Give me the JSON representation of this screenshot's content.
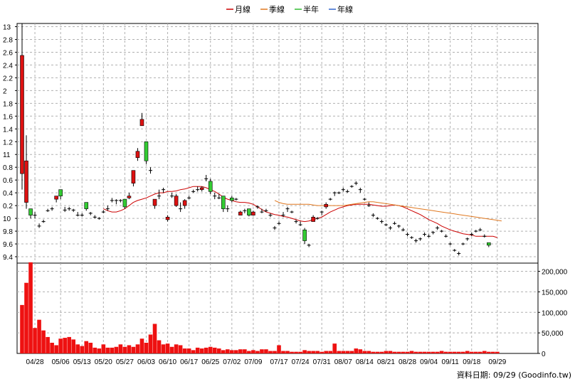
{
  "legend": [
    {
      "label": "月線",
      "color": "#cc0000"
    },
    {
      "label": "季線",
      "color": "#e07820"
    },
    {
      "label": "半年",
      "color": "#33bb33"
    },
    {
      "label": "年線",
      "color": "#3366cc"
    }
  ],
  "credit": "資料日期: 09/29 (Goodinfo.tw)",
  "colors": {
    "up": "#dd1111",
    "down": "#33cc33",
    "grid": "#b0b0b0",
    "volume": "#ee1111"
  },
  "chart_data": [
    {
      "type": "candlestick",
      "price_ticks": [
        "13",
        "2.8",
        "2.6",
        "2.4",
        "2.2",
        "2",
        "1.8",
        "1.6",
        "1.4",
        "1.2",
        "11",
        "0.8",
        "0.6",
        "0.4",
        "0.2",
        "10",
        "9.8",
        "9.6",
        "9.4"
      ],
      "price_tick_values": [
        13,
        12.8,
        12.6,
        12.4,
        12.2,
        12,
        11.8,
        11.6,
        11.4,
        11.2,
        11,
        10.8,
        10.6,
        10.4,
        10.2,
        10,
        9.8,
        9.6,
        9.4
      ],
      "ylim": [
        9.3,
        13.05
      ],
      "xlim": [
        0,
        120
      ],
      "x_ticks": [
        {
          "label": "04/28",
          "i": 3
        },
        {
          "label": "05/06",
          "i": 9
        },
        {
          "label": "05/13",
          "i": 14
        },
        {
          "label": "05/20",
          "i": 19
        },
        {
          "label": "05/27",
          "i": 24
        },
        {
          "label": "06/03",
          "i": 29
        },
        {
          "label": "06/10",
          "i": 34
        },
        {
          "label": "06/17",
          "i": 39
        },
        {
          "label": "06/25",
          "i": 44
        },
        {
          "label": "07/02",
          "i": 49
        },
        {
          "label": "07/09",
          "i": 54
        },
        {
          "label": "07/17",
          "i": 60
        },
        {
          "label": "07/24",
          "i": 65
        },
        {
          "label": "07/31",
          "i": 70
        },
        {
          "label": "08/07",
          "i": 75
        },
        {
          "label": "08/14",
          "i": 80
        },
        {
          "label": "08/21",
          "i": 85
        },
        {
          "label": "08/28",
          "i": 90
        },
        {
          "label": "09/04",
          "i": 95
        },
        {
          "label": "09/11",
          "i": 100
        },
        {
          "label": "09/18",
          "i": 105
        },
        {
          "label": "09/29",
          "i": 111
        }
      ],
      "candles": [
        [
          10.7,
          12.55,
          13.05,
          10.45
        ],
        [
          10.25,
          10.9,
          11.3,
          10.15
        ],
        [
          10.15,
          10.05,
          10.15,
          10.0
        ],
        [
          10.05,
          10.05,
          10.1,
          10.0
        ],
        [
          9.88,
          9.88,
          9.92,
          9.85
        ],
        [
          9.95,
          9.95,
          9.98,
          9.93
        ],
        [
          10.12,
          10.12,
          10.15,
          10.1
        ],
        [
          10.15,
          10.15,
          10.18,
          10.12
        ],
        [
          10.3,
          10.35,
          10.35,
          10.25
        ],
        [
          10.45,
          10.35,
          10.45,
          10.3
        ],
        [
          10.13,
          10.13,
          10.18,
          10.1
        ],
        [
          10.15,
          10.15,
          10.18,
          10.12
        ],
        [
          10.13,
          10.13,
          10.15,
          10.1
        ],
        [
          10.05,
          10.05,
          10.1,
          10.03
        ],
        [
          10.05,
          10.05,
          10.08,
          10.03
        ],
        [
          10.25,
          10.15,
          10.25,
          10.12
        ],
        [
          10.08,
          10.08,
          10.1,
          10.05
        ],
        [
          10.02,
          10.02,
          10.05,
          10.0
        ],
        [
          10.0,
          10.0,
          10.02,
          9.98
        ],
        [
          10.1,
          10.1,
          10.13,
          10.08
        ],
        [
          10.15,
          10.15,
          10.2,
          10.12
        ],
        [
          10.28,
          10.28,
          10.32,
          10.25
        ],
        [
          10.28,
          10.28,
          10.3,
          10.22
        ],
        [
          10.28,
          10.28,
          10.3,
          10.25
        ],
        [
          10.3,
          10.18,
          10.3,
          10.15
        ],
        [
          10.32,
          10.35,
          10.4,
          10.3
        ],
        [
          10.55,
          10.75,
          10.75,
          10.5
        ],
        [
          10.95,
          11.05,
          11.1,
          10.9
        ],
        [
          11.45,
          11.55,
          11.65,
          11.45
        ],
        [
          11.2,
          10.9,
          11.2,
          10.85
        ],
        [
          10.75,
          10.75,
          10.8,
          10.7
        ],
        [
          10.2,
          10.3,
          10.3,
          10.15
        ],
        [
          10.35,
          10.35,
          10.45,
          10.3
        ],
        [
          10.45,
          10.45,
          10.48,
          10.4
        ],
        [
          9.98,
          10.02,
          10.05,
          9.95
        ],
        [
          10.35,
          10.35,
          10.4,
          10.32
        ],
        [
          10.2,
          10.35,
          10.38,
          10.18
        ],
        [
          10.15,
          10.15,
          10.25,
          10.1
        ],
        [
          10.2,
          10.28,
          10.3,
          10.15
        ],
        [
          10.32,
          10.32,
          10.35,
          10.3
        ],
        [
          10.42,
          10.42,
          10.45,
          10.4
        ],
        [
          10.45,
          10.45,
          10.5,
          10.42
        ],
        [
          10.45,
          10.48,
          10.5,
          10.42
        ],
        [
          10.62,
          10.62,
          10.68,
          10.58
        ],
        [
          10.58,
          10.42,
          10.62,
          10.38
        ],
        [
          10.35,
          10.35,
          10.4,
          10.3
        ],
        [
          10.32,
          10.32,
          10.38,
          10.3
        ],
        [
          10.35,
          10.15,
          10.35,
          10.1
        ],
        [
          10.15,
          10.15,
          10.2,
          10.1
        ],
        [
          10.32,
          10.28,
          10.35,
          10.25
        ],
        [
          10.3,
          10.3,
          10.32,
          10.28
        ],
        [
          10.05,
          10.1,
          10.12,
          10.05
        ],
        [
          10.12,
          10.12,
          10.15,
          10.08
        ],
        [
          10.15,
          10.05,
          10.15,
          10.03
        ],
        [
          10.05,
          10.1,
          10.12,
          10.05
        ],
        [
          10.18,
          10.18,
          10.2,
          10.15
        ],
        [
          10.1,
          10.1,
          10.15,
          10.08
        ],
        [
          10.12,
          10.12,
          10.15,
          10.1
        ],
        [
          10.05,
          10.05,
          10.08,
          10.02
        ],
        [
          9.85,
          9.85,
          9.88,
          9.82
        ],
        [
          9.92,
          9.92,
          9.95,
          9.9
        ],
        [
          10.05,
          10.05,
          10.1,
          10.02
        ],
        [
          10.15,
          10.15,
          10.18,
          10.1
        ],
        [
          10.1,
          10.1,
          10.12,
          10.08
        ],
        [
          9.95,
          9.95,
          9.98,
          9.92
        ],
        [
          9.9,
          9.9,
          9.95,
          9.88
        ],
        [
          9.82,
          9.65,
          9.85,
          9.6
        ],
        [
          9.58,
          9.58,
          9.6,
          9.55
        ],
        [
          9.95,
          10.02,
          10.05,
          9.95
        ],
        [
          10.0,
          10.0,
          10.02,
          9.98
        ],
        [
          10.1,
          10.1,
          10.12,
          10.05
        ],
        [
          10.18,
          10.22,
          10.25,
          10.15
        ],
        [
          10.3,
          10.3,
          10.32,
          10.28
        ],
        [
          10.4,
          10.4,
          10.42,
          10.35
        ],
        [
          10.4,
          10.4,
          10.42,
          10.38
        ],
        [
          10.45,
          10.45,
          10.48,
          10.42
        ],
        [
          10.42,
          10.42,
          10.45,
          10.4
        ],
        [
          10.5,
          10.5,
          10.52,
          10.48
        ],
        [
          10.55,
          10.55,
          10.58,
          10.52
        ],
        [
          10.45,
          10.45,
          10.48,
          10.4
        ],
        [
          10.3,
          10.3,
          10.32,
          10.28
        ],
        [
          10.2,
          10.2,
          10.25,
          10.18
        ],
        [
          10.05,
          10.05,
          10.08,
          10.02
        ],
        [
          10.0,
          10.0,
          10.02,
          9.98
        ],
        [
          9.95,
          9.95,
          9.98,
          9.92
        ],
        [
          9.9,
          9.9,
          9.92,
          9.88
        ],
        [
          9.85,
          9.85,
          9.88,
          9.82
        ],
        [
          9.92,
          9.92,
          9.95,
          9.9
        ],
        [
          9.88,
          9.88,
          9.9,
          9.85
        ],
        [
          9.82,
          9.82,
          9.85,
          9.8
        ],
        [
          9.75,
          9.75,
          9.78,
          9.72
        ],
        [
          9.7,
          9.7,
          9.72,
          9.68
        ],
        [
          9.65,
          9.65,
          9.68,
          9.62
        ],
        [
          9.68,
          9.68,
          9.7,
          9.65
        ],
        [
          9.75,
          9.75,
          9.78,
          9.72
        ],
        [
          9.72,
          9.72,
          9.75,
          9.7
        ],
        [
          9.78,
          9.78,
          9.8,
          9.75
        ],
        [
          9.85,
          9.85,
          9.88,
          9.82
        ],
        [
          9.8,
          9.8,
          9.82,
          9.78
        ],
        [
          9.72,
          9.72,
          9.75,
          9.7
        ],
        [
          9.6,
          9.6,
          9.62,
          9.58
        ],
        [
          9.5,
          9.5,
          9.52,
          9.48
        ],
        [
          9.45,
          9.45,
          9.48,
          9.42
        ],
        [
          9.6,
          9.6,
          9.62,
          9.58
        ],
        [
          9.68,
          9.68,
          9.7,
          9.65
        ],
        [
          9.75,
          9.75,
          9.78,
          9.72
        ],
        [
          9.8,
          9.8,
          9.82,
          9.78
        ],
        [
          9.82,
          9.82,
          9.85,
          9.8
        ],
        [
          9.72,
          9.72,
          9.75,
          9.7
        ],
        [
          9.62,
          9.58,
          9.62,
          9.55
        ]
      ],
      "series": [
        {
          "name": "月線",
          "start": 19,
          "values": [
            10.15,
            10.12,
            10.1,
            10.1,
            10.12,
            10.15,
            10.2,
            10.25,
            10.28,
            10.3,
            10.32,
            10.35,
            10.38,
            10.4,
            10.4,
            10.42,
            10.42,
            10.43,
            10.45,
            10.46,
            10.48,
            10.5,
            10.5,
            10.5,
            10.48,
            10.45,
            10.42,
            10.38,
            10.33,
            10.3,
            10.28,
            10.26,
            10.25,
            10.25,
            10.24,
            10.22,
            10.18,
            10.14,
            10.1,
            10.08,
            10.06,
            10.05,
            10.03,
            10.02,
            10.0,
            9.98,
            9.96,
            9.95,
            9.96,
            9.98,
            10.0,
            10.02,
            10.06,
            10.1,
            10.13,
            10.16,
            10.18,
            10.2,
            10.21,
            10.22,
            10.22,
            10.22,
            10.22,
            10.21,
            10.2,
            10.19,
            10.19,
            10.2,
            10.21,
            10.2,
            10.18,
            10.15,
            10.12,
            10.09,
            10.06,
            10.02,
            9.98,
            9.95,
            9.92,
            9.88,
            9.85,
            9.82,
            9.8,
            9.78,
            9.76,
            9.75,
            9.74,
            9.72,
            9.72,
            9.72,
            9.72,
            9.72,
            9.7
          ]
        },
        {
          "name": "季線",
          "start": 59,
          "values": [
            10.28,
            10.25,
            10.23,
            10.22,
            10.22,
            10.22,
            10.22,
            10.22,
            10.22,
            10.21,
            10.2,
            10.2,
            10.2,
            10.2,
            10.2,
            10.2,
            10.2,
            10.21,
            10.22,
            10.23,
            10.24,
            10.25,
            10.26,
            10.26,
            10.25,
            10.24,
            10.23,
            10.22,
            10.21,
            10.2,
            10.19,
            10.18,
            10.17,
            10.16,
            10.15,
            10.14,
            10.13,
            10.12,
            10.11,
            10.1,
            10.09,
            10.08,
            10.07,
            10.06,
            10.05,
            10.04,
            10.03,
            10.02,
            10.01,
            10.0,
            9.99,
            9.98,
            9.97,
            9.96
          ]
        },
        {
          "name": "半年",
          "values": []
        },
        {
          "name": "年線",
          "values": []
        }
      ]
    },
    {
      "type": "bar",
      "y_ticks": [
        "200,000",
        "150,000",
        "100,000",
        "50,000",
        "0"
      ],
      "y_tick_values": [
        200000,
        150000,
        100000,
        50000,
        0
      ],
      "ylim": [
        0,
        220000
      ],
      "values": [
        118000,
        172000,
        222000,
        62000,
        82000,
        56000,
        40000,
        26000,
        20000,
        36000,
        38000,
        40000,
        34000,
        22000,
        18000,
        30000,
        26000,
        14000,
        12000,
        22000,
        14000,
        14000,
        16000,
        22000,
        16000,
        20000,
        16000,
        22000,
        36000,
        26000,
        46000,
        72000,
        32000,
        22000,
        24000,
        16000,
        22000,
        20000,
        12000,
        12000,
        8000,
        14000,
        12000,
        14000,
        16000,
        14000,
        12000,
        8000,
        10000,
        8000,
        8000,
        10000,
        10000,
        6000,
        8000,
        6000,
        10000,
        10000,
        6000,
        6000,
        20000,
        6000,
        6000,
        4000,
        4000,
        4000,
        8000,
        6000,
        6000,
        6000,
        4000,
        6000,
        6000,
        24000,
        6000,
        6000,
        6000,
        6000,
        12000,
        10000,
        6000,
        6000,
        4000,
        4000,
        4000,
        6000,
        6000,
        4000,
        4000,
        4000,
        4000,
        6000,
        4000,
        4000,
        4000,
        4000,
        4000,
        4000,
        6000,
        4000,
        4000,
        4000,
        4000,
        4000,
        6000,
        4000,
        4000,
        4000,
        6000,
        4000,
        4000,
        4000
      ]
    }
  ]
}
